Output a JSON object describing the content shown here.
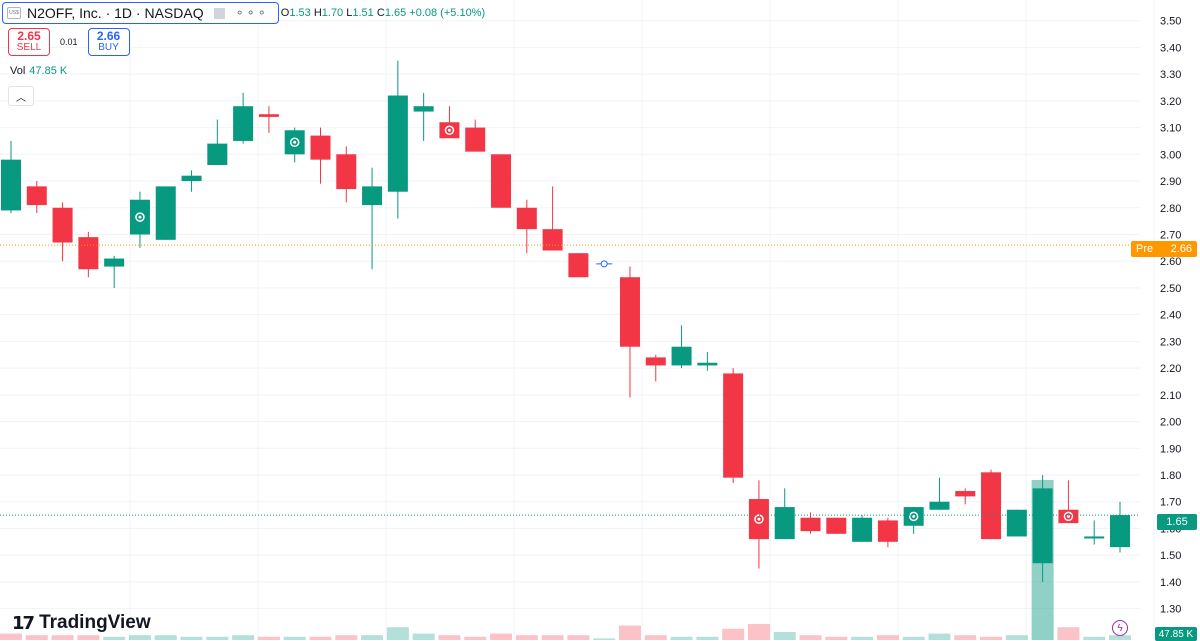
{
  "header": {
    "symbol_icon": "US$",
    "title": "N2OFF, Inc. · 1D · NASDAQ",
    "ohlc": {
      "o_label": "O",
      "o": "1.53",
      "h_label": "H",
      "h": "1.70",
      "l_label": "L",
      "l": "1.51",
      "c_label": "C",
      "c": "1.65",
      "change": "+0.08 (+5.10%)"
    }
  },
  "trade": {
    "sell_price": "2.65",
    "sell_label": "SELL",
    "spread": "0.01",
    "buy_price": "2.66",
    "buy_label": "BUY"
  },
  "volume": {
    "label": "Vol",
    "value": "47.85 K"
  },
  "badges": {
    "pre_label": "Pre",
    "pre_value": "2.66",
    "last_value": "1.65",
    "volume_value": "47.85 K"
  },
  "logo": {
    "text": "TradingView"
  },
  "colors": {
    "up": "#089981",
    "down": "#f23645",
    "pre_line": "#ff9800",
    "last_line": "#089981",
    "grid": "#f0f3fa"
  },
  "icons": {
    "collapse": "chevron-up-icon",
    "more": "dots-icon",
    "lightning": "lightning-icon"
  },
  "chart_data": {
    "type": "candlestick",
    "yticks": [
      "3.50",
      "3.40",
      "3.30",
      "3.20",
      "3.10",
      "3.00",
      "2.90",
      "2.80",
      "2.70",
      "2.60",
      "2.50",
      "2.40",
      "2.30",
      "2.20",
      "2.10",
      "2.00",
      "1.90",
      "1.80",
      "1.70",
      "1.60",
      "1.50",
      "1.40",
      "1.30"
    ],
    "ylim": [
      1.22,
      3.54
    ],
    "pre_price": 2.66,
    "last_price": 1.65,
    "candles": [
      {
        "o": 2.79,
        "h": 3.05,
        "l": 2.78,
        "c": 2.98
      },
      {
        "o": 2.88,
        "h": 2.9,
        "l": 2.78,
        "c": 2.81
      },
      {
        "o": 2.8,
        "h": 2.82,
        "l": 2.6,
        "c": 2.67
      },
      {
        "o": 2.69,
        "h": 2.71,
        "l": 2.54,
        "c": 2.57
      },
      {
        "o": 2.58,
        "h": 2.62,
        "l": 2.5,
        "c": 2.61,
        "marker": false
      },
      {
        "o": 2.7,
        "h": 2.86,
        "l": 2.65,
        "c": 2.83,
        "marker": true
      },
      {
        "o": 2.68,
        "h": 2.88,
        "l": 2.68,
        "c": 2.88
      },
      {
        "o": 2.9,
        "h": 2.94,
        "l": 2.86,
        "c": 2.92
      },
      {
        "o": 2.96,
        "h": 3.13,
        "l": 2.96,
        "c": 3.04
      },
      {
        "o": 3.05,
        "h": 3.23,
        "l": 3.04,
        "c": 3.18
      },
      {
        "o": 3.15,
        "h": 3.18,
        "l": 3.08,
        "c": 3.14
      },
      {
        "o": 3.0,
        "h": 3.1,
        "l": 2.97,
        "c": 3.09,
        "marker": true
      },
      {
        "o": 3.07,
        "h": 3.1,
        "l": 2.89,
        "c": 2.98
      },
      {
        "o": 3.0,
        "h": 3.03,
        "l": 2.82,
        "c": 2.87
      },
      {
        "o": 2.81,
        "h": 2.95,
        "l": 2.57,
        "c": 2.88
      },
      {
        "o": 2.86,
        "h": 3.35,
        "l": 2.76,
        "c": 3.22
      },
      {
        "o": 3.16,
        "h": 3.23,
        "l": 3.05,
        "c": 3.18
      },
      {
        "o": 3.12,
        "h": 3.18,
        "l": 3.06,
        "c": 3.06,
        "marker": true
      },
      {
        "o": 3.1,
        "h": 3.13,
        "l": 3.01,
        "c": 3.01
      },
      {
        "o": 3.0,
        "h": 3.0,
        "l": 2.8,
        "c": 2.8
      },
      {
        "o": 2.8,
        "h": 2.83,
        "l": 2.63,
        "c": 2.72
      },
      {
        "o": 2.72,
        "h": 2.88,
        "l": 2.64,
        "c": 2.64
      },
      {
        "o": 2.63,
        "h": 2.63,
        "l": 2.54,
        "c": 2.54
      },
      {
        "o": 2.59,
        "h": 2.59,
        "l": 2.59,
        "c": 2.59,
        "doji_marker": true
      },
      {
        "o": 2.54,
        "h": 2.58,
        "l": 2.09,
        "c": 2.28
      },
      {
        "o": 2.24,
        "h": 2.25,
        "l": 2.15,
        "c": 2.21
      },
      {
        "o": 2.21,
        "h": 2.36,
        "l": 2.2,
        "c": 2.28
      },
      {
        "o": 2.21,
        "h": 2.26,
        "l": 2.19,
        "c": 2.22
      },
      {
        "o": 2.18,
        "h": 2.2,
        "l": 1.77,
        "c": 1.79
      },
      {
        "o": 1.71,
        "h": 1.78,
        "l": 1.45,
        "c": 1.56,
        "marker": true
      },
      {
        "o": 1.56,
        "h": 1.75,
        "l": 1.56,
        "c": 1.68
      },
      {
        "o": 1.64,
        "h": 1.66,
        "l": 1.58,
        "c": 1.59
      },
      {
        "o": 1.64,
        "h": 1.64,
        "l": 1.58,
        "c": 1.58
      },
      {
        "o": 1.55,
        "h": 1.65,
        "l": 1.55,
        "c": 1.64
      },
      {
        "o": 1.63,
        "h": 1.64,
        "l": 1.53,
        "c": 1.55
      },
      {
        "o": 1.61,
        "h": 1.68,
        "l": 1.58,
        "c": 1.68,
        "marker": true
      },
      {
        "o": 1.67,
        "h": 1.79,
        "l": 1.67,
        "c": 1.7
      },
      {
        "o": 1.74,
        "h": 1.75,
        "l": 1.69,
        "c": 1.72
      },
      {
        "o": 1.81,
        "h": 1.82,
        "l": 1.56,
        "c": 1.56
      },
      {
        "o": 1.57,
        "h": 1.67,
        "l": 1.57,
        "c": 1.67
      },
      {
        "o": 1.47,
        "h": 1.8,
        "l": 1.4,
        "c": 1.75
      },
      {
        "o": 1.67,
        "h": 1.78,
        "l": 1.62,
        "c": 1.62,
        "marker": true
      },
      {
        "o": 1.57,
        "h": 1.63,
        "l": 1.54,
        "c": 1.57
      },
      {
        "o": 1.53,
        "h": 1.7,
        "l": 1.51,
        "c": 1.65
      }
    ],
    "volume_bars": [
      {
        "v": 4,
        "up": false
      },
      {
        "v": 3,
        "up": false
      },
      {
        "v": 3,
        "up": false
      },
      {
        "v": 3,
        "up": false
      },
      {
        "v": 2,
        "up": true
      },
      {
        "v": 3,
        "up": true
      },
      {
        "v": 3,
        "up": true
      },
      {
        "v": 2,
        "up": true
      },
      {
        "v": 2,
        "up": true
      },
      {
        "v": 3,
        "up": true
      },
      {
        "v": 2,
        "up": false
      },
      {
        "v": 2,
        "up": true
      },
      {
        "v": 2,
        "up": false
      },
      {
        "v": 3,
        "up": false
      },
      {
        "v": 3,
        "up": true
      },
      {
        "v": 8,
        "up": true
      },
      {
        "v": 4,
        "up": true
      },
      {
        "v": 3,
        "up": false
      },
      {
        "v": 2,
        "up": false
      },
      {
        "v": 4,
        "up": false
      },
      {
        "v": 3,
        "up": false
      },
      {
        "v": 3,
        "up": false
      },
      {
        "v": 3,
        "up": false
      },
      {
        "v": 1,
        "up": true
      },
      {
        "v": 9,
        "up": false
      },
      {
        "v": 3,
        "up": false
      },
      {
        "v": 2,
        "up": true
      },
      {
        "v": 2,
        "up": true
      },
      {
        "v": 7,
        "up": false
      },
      {
        "v": 10,
        "up": false
      },
      {
        "v": 5,
        "up": true
      },
      {
        "v": 3,
        "up": false
      },
      {
        "v": 2,
        "up": false
      },
      {
        "v": 2,
        "up": true
      },
      {
        "v": 3,
        "up": false
      },
      {
        "v": 2,
        "up": true
      },
      {
        "v": 4,
        "up": true
      },
      {
        "v": 3,
        "up": false
      },
      {
        "v": 2,
        "up": false
      },
      {
        "v": 3,
        "up": true
      },
      {
        "v": 100,
        "up": true
      },
      {
        "v": 8,
        "up": false
      },
      {
        "v": 2,
        "up": true
      },
      {
        "v": 3,
        "up": true
      }
    ]
  }
}
